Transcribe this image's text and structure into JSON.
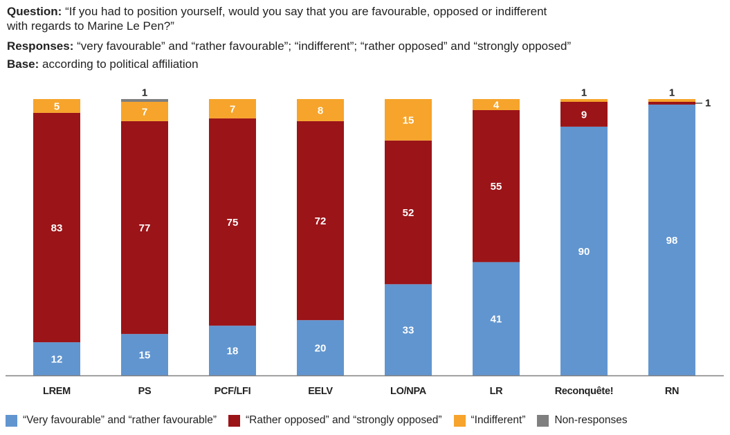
{
  "header": {
    "question_label": "Question:",
    "question_line1": "“If you had to position yourself, would you say that you are favourable, opposed or indifferent",
    "question_line2": "with regards to Marine Le Pen?”",
    "responses_label": "Responses:",
    "responses_text": "“very favourable” and “rather favourable”; “indifferent”; “rather opposed” and “strongly opposed”",
    "base_label": "Base:",
    "base_text": "according to political affiliation"
  },
  "colors": {
    "favourable": "#6195cf",
    "opposed": "#9b1418",
    "indifferent": "#f6a42b",
    "nonresponse": "#7f7f7f",
    "axis": "#808080",
    "label_light": "#ffffff",
    "label_dark": "#222222"
  },
  "chart_data": {
    "type": "bar",
    "stacked": true,
    "title": "",
    "xlabel": "",
    "ylabel": "",
    "ylim": [
      0,
      100
    ],
    "grid": false,
    "legend_position": "bottom",
    "categories": [
      "LREM",
      "PS",
      "PCF/LFI",
      "EELV",
      "LO/NPA",
      "LR",
      "Reconquête!",
      "RN"
    ],
    "series": [
      {
        "name": "“Very favourable” and “rather favourable”",
        "key": "favourable",
        "values": [
          12,
          15,
          18,
          20,
          33,
          41,
          90,
          98
        ]
      },
      {
        "name": "“Rather opposed” and “strongly opposed”",
        "key": "opposed",
        "values": [
          83,
          77,
          75,
          72,
          52,
          55,
          9,
          1
        ]
      },
      {
        "name": "“Indifferent”",
        "key": "indifferent",
        "values": [
          5,
          7,
          7,
          8,
          15,
          4,
          1,
          1
        ]
      },
      {
        "name": "Non-responses",
        "key": "nonresponse",
        "values": [
          0,
          1,
          0,
          0,
          0,
          0,
          0,
          0
        ]
      }
    ],
    "data_labels": [
      {
        "category": "LREM",
        "favourable": "12",
        "opposed": "83",
        "indifferent": "5"
      },
      {
        "category": "PS",
        "favourable": "15",
        "opposed": "77",
        "indifferent": "7",
        "nonresponse_above": "1"
      },
      {
        "category": "PCF/LFI",
        "favourable": "18",
        "opposed": "75",
        "indifferent": "7"
      },
      {
        "category": "EELV",
        "favourable": "20",
        "opposed": "72",
        "indifferent": "8"
      },
      {
        "category": "LO/NPA",
        "favourable": "33",
        "opposed": "52",
        "indifferent": "15"
      },
      {
        "category": "LR",
        "favourable": "41",
        "opposed": "55",
        "indifferent": "4"
      },
      {
        "category": "Reconquête!",
        "favourable": "90",
        "opposed": "9",
        "indifferent_above": "1"
      },
      {
        "category": "RN",
        "favourable": "98",
        "opposed_side": "1",
        "indifferent_above": "1"
      }
    ]
  }
}
